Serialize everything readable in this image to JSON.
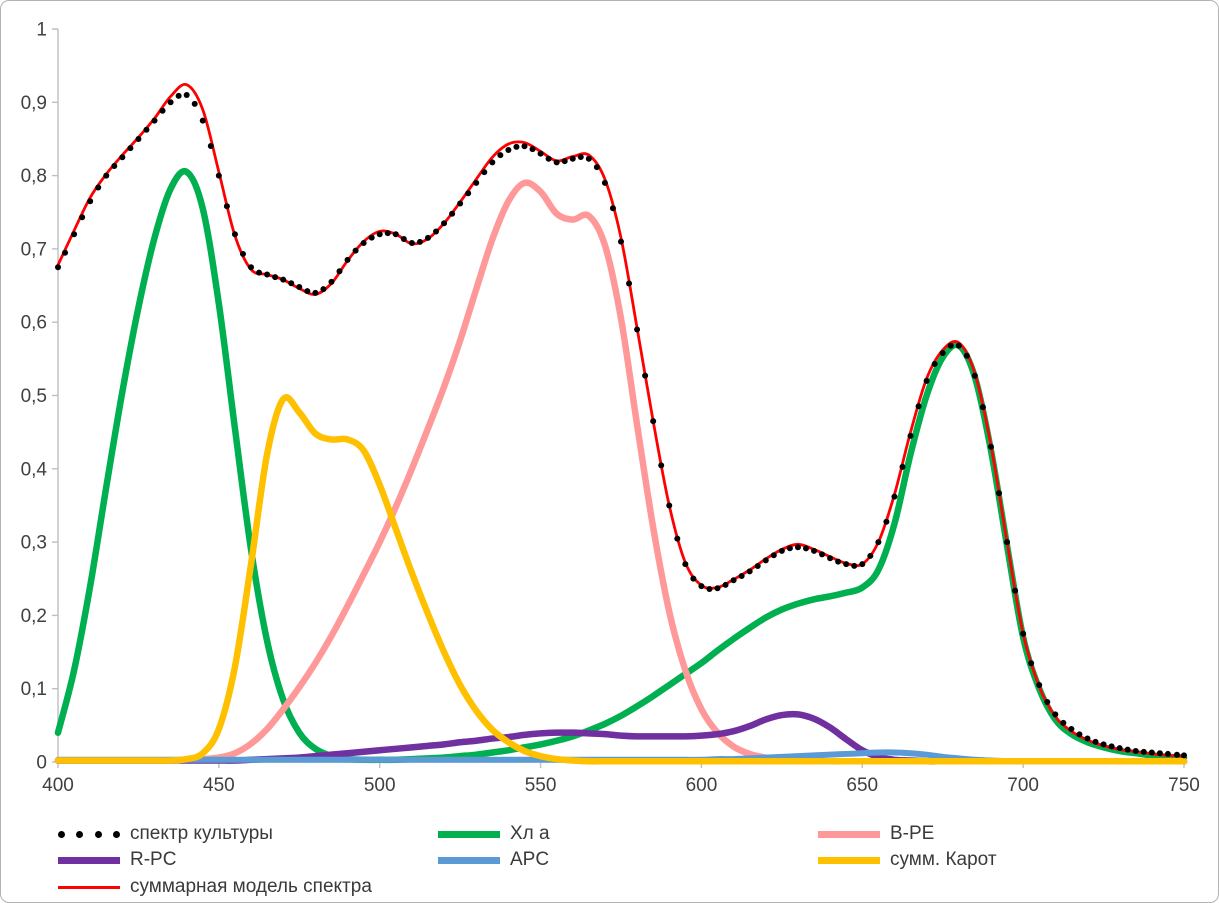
{
  "chart_data": {
    "type": "line",
    "title": "",
    "xlabel": "",
    "ylabel": "",
    "xlim": [
      400,
      750
    ],
    "ylim": [
      0,
      1
    ],
    "x_ticks": [
      400,
      450,
      500,
      550,
      600,
      650,
      700,
      750
    ],
    "y_ticks": [
      0,
      0.1,
      0.2,
      0.3,
      0.4,
      0.5,
      0.6,
      0.7,
      0.8,
      0.9,
      1
    ],
    "y_tick_labels": [
      "0",
      "0,1",
      "0,2",
      "0,3",
      "0,4",
      "0,5",
      "0,6",
      "0,7",
      "0,8",
      "0,9",
      "1"
    ],
    "grid": false,
    "legend_position": "bottom",
    "axis_color": "#BFBFBF",
    "text_color": "#404040",
    "x_start": 400,
    "x_step": 5,
    "draw_order": [
      1,
      2,
      3,
      4,
      5,
      6,
      0
    ],
    "series": [
      {
        "name": "спектр культуры",
        "type": "scatter",
        "marker": "dots",
        "color": "#000000",
        "marker_size": 3,
        "values": [
          0.675,
          0.72,
          0.765,
          0.8,
          0.825,
          0.85,
          0.875,
          0.9,
          0.91,
          0.875,
          0.8,
          0.72,
          0.675,
          0.665,
          0.658,
          0.648,
          0.64,
          0.655,
          0.685,
          0.708,
          0.72,
          0.72,
          0.708,
          0.715,
          0.735,
          0.762,
          0.79,
          0.818,
          0.835,
          0.84,
          0.83,
          0.818,
          0.823,
          0.823,
          0.79,
          0.71,
          0.59,
          0.465,
          0.35,
          0.27,
          0.24,
          0.237,
          0.248,
          0.26,
          0.275,
          0.288,
          0.293,
          0.288,
          0.278,
          0.27,
          0.27,
          0.3,
          0.362,
          0.445,
          0.52,
          0.558,
          0.568,
          0.527,
          0.43,
          0.3,
          0.175,
          0.105,
          0.065,
          0.045,
          0.032,
          0.024,
          0.019,
          0.015,
          0.013,
          0.011,
          0.009
        ]
      },
      {
        "name": "Хл a",
        "type": "line",
        "color": "#00B050",
        "line_width": 6.5,
        "values": [
          0.04,
          0.125,
          0.24,
          0.375,
          0.505,
          0.62,
          0.715,
          0.782,
          0.805,
          0.755,
          0.625,
          0.455,
          0.29,
          0.165,
          0.085,
          0.04,
          0.018,
          0.008,
          0.004,
          0.003,
          0.003,
          0.003,
          0.004,
          0.005,
          0.006,
          0.008,
          0.01,
          0.013,
          0.016,
          0.02,
          0.024,
          0.029,
          0.035,
          0.043,
          0.052,
          0.063,
          0.076,
          0.09,
          0.105,
          0.12,
          0.135,
          0.152,
          0.168,
          0.183,
          0.197,
          0.208,
          0.216,
          0.222,
          0.226,
          0.231,
          0.238,
          0.262,
          0.325,
          0.42,
          0.5,
          0.552,
          0.568,
          0.525,
          0.425,
          0.295,
          0.17,
          0.1,
          0.058,
          0.038,
          0.027,
          0.02,
          0.015,
          0.012,
          0.009,
          0.007,
          0.006
        ]
      },
      {
        "name": "B-PE",
        "type": "line",
        "color": "#FF9999",
        "line_width": 6.5,
        "values": [
          0.002,
          0.002,
          0.002,
          0.002,
          0.002,
          0.002,
          0.002,
          0.002,
          0.003,
          0.004,
          0.006,
          0.012,
          0.025,
          0.045,
          0.072,
          0.102,
          0.135,
          0.172,
          0.213,
          0.256,
          0.3,
          0.348,
          0.4,
          0.455,
          0.512,
          0.575,
          0.645,
          0.713,
          0.765,
          0.79,
          0.778,
          0.748,
          0.74,
          0.745,
          0.705,
          0.605,
          0.46,
          0.32,
          0.205,
          0.125,
          0.072,
          0.04,
          0.021,
          0.011,
          0.006,
          0.003,
          0.002,
          0.002,
          0.001,
          0.001,
          0.001,
          0.001,
          0.001,
          0.001,
          0.001,
          0.001,
          0.001,
          0.001,
          0.001,
          0.001,
          0.001,
          0.001,
          0.001,
          0.001,
          0.001,
          0.001,
          0.001,
          0.001,
          0.001,
          0.001,
          0.001
        ]
      },
      {
        "name": "R-PC",
        "type": "line",
        "color": "#7030A0",
        "line_width": 6.5,
        "values": [
          0.002,
          0.002,
          0.002,
          0.002,
          0.002,
          0.002,
          0.002,
          0.002,
          0.002,
          0.002,
          0.002,
          0.002,
          0.003,
          0.004,
          0.005,
          0.006,
          0.008,
          0.01,
          0.012,
          0.014,
          0.016,
          0.018,
          0.02,
          0.022,
          0.024,
          0.027,
          0.029,
          0.032,
          0.034,
          0.037,
          0.039,
          0.04,
          0.04,
          0.039,
          0.038,
          0.036,
          0.035,
          0.035,
          0.035,
          0.035,
          0.036,
          0.038,
          0.042,
          0.049,
          0.058,
          0.064,
          0.065,
          0.059,
          0.047,
          0.031,
          0.016,
          0.007,
          0.003,
          0.002,
          0.001,
          0.001,
          0.001,
          0.001,
          0.001,
          0.001,
          0.001,
          0.001,
          0.001,
          0.001,
          0.001,
          0.001,
          0.001,
          0.001,
          0.001,
          0.001,
          0.001
        ]
      },
      {
        "name": "APC",
        "type": "line",
        "color": "#5B9BD5",
        "line_width": 6,
        "values": [
          0.003,
          0.003,
          0.003,
          0.003,
          0.003,
          0.003,
          0.003,
          0.003,
          0.003,
          0.003,
          0.003,
          0.003,
          0.003,
          0.003,
          0.003,
          0.003,
          0.003,
          0.003,
          0.003,
          0.003,
          0.003,
          0.003,
          0.003,
          0.003,
          0.003,
          0.003,
          0.003,
          0.003,
          0.003,
          0.003,
          0.003,
          0.003,
          0.003,
          0.003,
          0.003,
          0.003,
          0.003,
          0.003,
          0.003,
          0.003,
          0.003,
          0.004,
          0.004,
          0.005,
          0.006,
          0.007,
          0.008,
          0.009,
          0.01,
          0.011,
          0.012,
          0.013,
          0.013,
          0.012,
          0.01,
          0.007,
          0.005,
          0.003,
          0.002,
          0.001,
          0.001,
          0.001,
          0.001,
          0.001,
          0.001,
          0.001,
          0.001,
          0.001,
          0.001,
          0.001,
          0.001
        ]
      },
      {
        "name": "сумм. Карот",
        "type": "line",
        "color": "#FFC000",
        "line_width": 6.5,
        "values": [
          0.002,
          0.002,
          0.002,
          0.002,
          0.002,
          0.002,
          0.002,
          0.002,
          0.004,
          0.012,
          0.045,
          0.13,
          0.27,
          0.42,
          0.495,
          0.477,
          0.448,
          0.44,
          0.44,
          0.425,
          0.378,
          0.318,
          0.258,
          0.202,
          0.15,
          0.105,
          0.07,
          0.044,
          0.027,
          0.015,
          0.008,
          0.004,
          0.002,
          0.001,
          0.001,
          0.001,
          0.001,
          0.001,
          0.001,
          0.001,
          0.001,
          0.001,
          0.001,
          0.001,
          0.001,
          0.001,
          0.001,
          0.001,
          0.001,
          0.001,
          0.001,
          0.001,
          0.001,
          0.001,
          0.001,
          0.001,
          0.001,
          0.001,
          0.001,
          0.001,
          0.001,
          0.001,
          0.001,
          0.001,
          0.001,
          0.001,
          0.001,
          0.001,
          0.001,
          0.001,
          0.001
        ]
      },
      {
        "name": "суммарная модель спектра",
        "type": "line",
        "color": "#FF0000",
        "line_width": 2.8,
        "values": [
          0.678,
          0.725,
          0.77,
          0.802,
          0.828,
          0.852,
          0.878,
          0.908,
          0.924,
          0.89,
          0.805,
          0.718,
          0.672,
          0.665,
          0.658,
          0.646,
          0.638,
          0.653,
          0.684,
          0.71,
          0.724,
          0.72,
          0.707,
          0.714,
          0.735,
          0.764,
          0.795,
          0.825,
          0.843,
          0.845,
          0.833,
          0.82,
          0.826,
          0.828,
          0.795,
          0.715,
          0.592,
          0.465,
          0.35,
          0.272,
          0.241,
          0.238,
          0.249,
          0.262,
          0.277,
          0.29,
          0.297,
          0.29,
          0.28,
          0.271,
          0.27,
          0.3,
          0.365,
          0.45,
          0.523,
          0.562,
          0.572,
          0.53,
          0.432,
          0.3,
          0.175,
          0.103,
          0.062,
          0.042,
          0.03,
          0.022,
          0.017,
          0.014,
          0.011,
          0.009,
          0.008
        ]
      }
    ]
  }
}
